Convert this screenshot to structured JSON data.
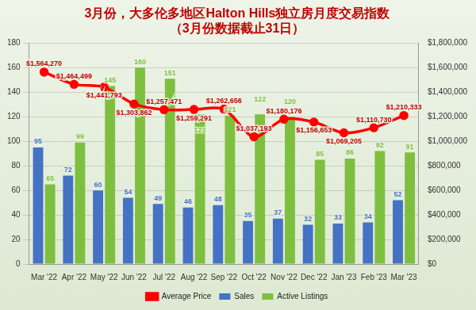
{
  "chart_data": {
    "type": "bar",
    "title": [
      "3月份，大多伦多地区Halton Hills独立房月度交易指数",
      "（3月份数据截止31日）"
    ],
    "categories": [
      "Mar '22",
      "Apr '22",
      "May '22",
      "Jun '22",
      "Jul '22",
      "Aug '22",
      "Sep '22",
      "Oct '22",
      "Nov '22",
      "Dec '22",
      "Jan '23",
      "Feb '23",
      "Mar '23"
    ],
    "series": [
      {
        "name": "Sales",
        "type": "bar",
        "color": "#4472c4",
        "values": [
          95,
          72,
          60,
          54,
          49,
          46,
          48,
          35,
          37,
          32,
          33,
          34,
          52
        ]
      },
      {
        "name": "Active Listings",
        "type": "bar",
        "color": "#7fbf3f",
        "values": [
          65,
          99,
          145,
          160,
          151,
          122,
          121,
          122,
          120,
          85,
          86,
          92,
          91
        ]
      },
      {
        "name": "Average Price",
        "type": "line",
        "color": "#ff0000",
        "marker": "circle",
        "axis": "y2",
        "values": [
          1564270,
          1464499,
          1441793,
          1303862,
          1257471,
          1259291,
          1262656,
          1037193,
          1180176,
          1156653,
          1069205,
          1110730,
          1210333
        ],
        "value_labels": [
          "$1,564,270",
          "$1,464,499",
          "$1,441,793",
          "$1,303,862",
          "$1,257,471",
          "$1,259,291",
          "$1,262,656",
          "$1,037,193",
          "$1,180,176",
          "$1,156,653",
          "$1,069,205",
          "$1,110,730",
          "$1,210,333"
        ]
      }
    ],
    "ylim": [
      0,
      180
    ],
    "yticks": [
      0,
      20,
      40,
      60,
      80,
      100,
      120,
      140,
      160,
      180
    ],
    "y2lim": [
      0,
      1800000
    ],
    "y2ticks": [
      {
        "value": 0,
        "label": "$0"
      },
      {
        "value": 200000,
        "label": "$200,000"
      },
      {
        "value": 400000,
        "label": "$400,000"
      },
      {
        "value": 600000,
        "label": "$600,000"
      },
      {
        "value": 800000,
        "label": "$800,000"
      },
      {
        "value": 1000000,
        "label": "$1,000,000"
      },
      {
        "value": 1200000,
        "label": "$1,200,000"
      },
      {
        "value": 1400000,
        "label": "$1,400,000"
      },
      {
        "value": 1600000,
        "label": "$1,600,000"
      },
      {
        "value": 1800000,
        "label": "$1,800,000"
      }
    ],
    "grid": true,
    "legend": "bottom",
    "data_labels": true
  }
}
